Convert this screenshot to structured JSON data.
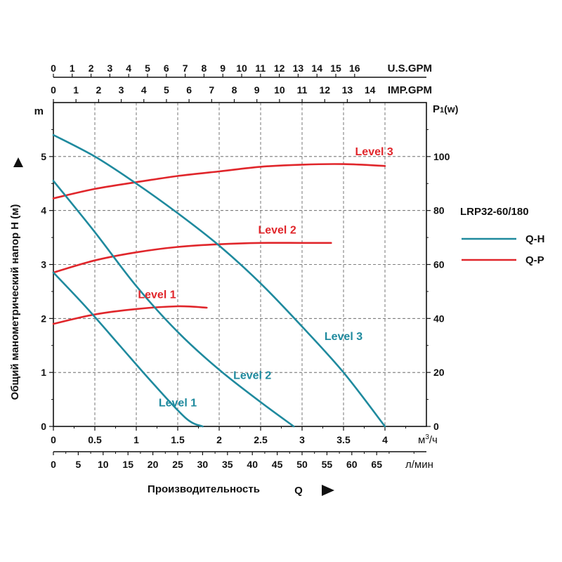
{
  "chart_data": {
    "type": "line",
    "model": "LRP32-60/180",
    "y_axis_label": "Общий манометрический напор H (м)",
    "y_axis_unit": "m",
    "y2_axis_unit_main": "P",
    "y2_axis_unit_sub": "1",
    "y2_axis_unit_tail": "(w)",
    "x_axis_label": "Производительность",
    "x_axis_symbol": "Q",
    "x_unit_m3h_base": "м",
    "x_unit_m3h_sup": "3",
    "x_unit_m3h_tail": "/ч",
    "x_unit_lmin": "л/мин",
    "top_unit_us": "U.S.GPM",
    "top_unit_imp": "IMP.GPM",
    "xlim_m3h": [
      0,
      4.5
    ],
    "ylim_m": [
      0,
      6
    ],
    "y2lim_w": [
      0,
      120
    ],
    "x_ticks_m3h": [
      "0",
      "0.5",
      "1",
      "1.5",
      "2",
      "2.5",
      "3",
      "3.5",
      "4"
    ],
    "x_ticks_lmin": [
      "0",
      "5",
      "10",
      "15",
      "20",
      "25",
      "30",
      "35",
      "40",
      "45",
      "50",
      "55",
      "60",
      "65"
    ],
    "y_ticks_m": [
      "0",
      "1",
      "2",
      "3",
      "4",
      "5"
    ],
    "y2_ticks_w": [
      "0",
      "20",
      "40",
      "60",
      "80",
      "100"
    ],
    "top_ticks_us_gpm": [
      "0",
      "1",
      "2",
      "3",
      "4",
      "5",
      "6",
      "7",
      "8",
      "9",
      "10",
      "11",
      "12",
      "13",
      "14",
      "15",
      "16"
    ],
    "top_ticks_imp_gpm": [
      "0",
      "1",
      "2",
      "3",
      "4",
      "5",
      "6",
      "7",
      "8",
      "9",
      "10",
      "11",
      "12",
      "13",
      "14"
    ],
    "legend": [
      {
        "label": "Q-H",
        "color": "#1f8a9e"
      },
      {
        "label": "Q-P",
        "color": "#e0262b"
      }
    ],
    "series_qh": [
      {
        "name": "Level 1",
        "x_m3h": [
          0,
          0.4,
          0.8,
          1.2,
          1.6,
          1.8
        ],
        "h_m": [
          2.85,
          2.2,
          1.5,
          0.8,
          0.15,
          0
        ]
      },
      {
        "name": "Level 2",
        "x_m3h": [
          0,
          0.5,
          1.0,
          1.5,
          2.0,
          2.5,
          2.9
        ],
        "h_m": [
          4.55,
          3.6,
          2.6,
          1.75,
          1.05,
          0.45,
          0
        ]
      },
      {
        "name": "Level 3",
        "x_m3h": [
          0,
          0.5,
          1.0,
          1.5,
          2.0,
          2.5,
          3.0,
          3.5,
          4.0
        ],
        "h_m": [
          5.4,
          5.0,
          4.5,
          3.95,
          3.35,
          2.65,
          1.85,
          1.0,
          0
        ]
      }
    ],
    "series_qp": [
      {
        "name": "Level 1",
        "x_m3h": [
          0,
          0.5,
          1.0,
          1.5,
          1.85
        ],
        "p_w": [
          38,
          41.5,
          43.5,
          44.5,
          44
        ]
      },
      {
        "name": "Level 2",
        "x_m3h": [
          0,
          0.5,
          1.0,
          1.5,
          2.0,
          2.5,
          3.0,
          3.35
        ],
        "p_w": [
          57,
          61.5,
          64.5,
          66.5,
          67.5,
          68,
          68,
          68
        ]
      },
      {
        "name": "Level 3",
        "x_m3h": [
          0,
          0.5,
          1.0,
          1.5,
          2.0,
          2.5,
          3.0,
          3.5,
          4.0
        ],
        "p_w": [
          84.5,
          88,
          90.5,
          92.8,
          94.5,
          96.2,
          97,
          97.2,
          96.5
        ]
      }
    ]
  }
}
